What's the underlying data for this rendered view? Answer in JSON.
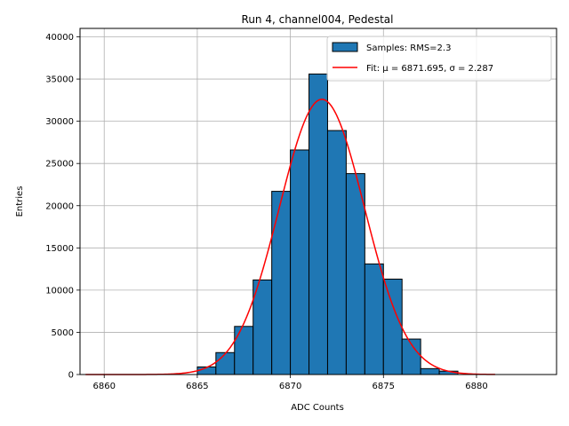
{
  "chart_data": {
    "type": "bar",
    "title": "Run 4, channel004, Pedestal",
    "xlabel": "ADC Counts",
    "ylabel": "Entries",
    "xlim": [
      6858.7,
      6884.3
    ],
    "ylim": [
      0,
      41000
    ],
    "xticks": [
      6860,
      6865,
      6870,
      6875,
      6880
    ],
    "yticks": [
      0,
      5000,
      10000,
      15000,
      20000,
      25000,
      30000,
      35000,
      40000
    ],
    "grid": true,
    "legend_position": "top-right",
    "histogram": {
      "name": "Samples: RMS=2.3",
      "color": "#1f77b4",
      "bin_edges": [
        6859,
        6860,
        6861,
        6862,
        6863,
        6864,
        6865,
        6866,
        6867,
        6868,
        6869,
        6870,
        6871,
        6872,
        6873,
        6874,
        6875,
        6876,
        6877,
        6878,
        6879,
        6880,
        6881,
        6882,
        6883
      ],
      "values": [
        0,
        0,
        0,
        0,
        0,
        0,
        900,
        2600,
        5700,
        11200,
        21700,
        26600,
        35600,
        28900,
        23800,
        13100,
        11300,
        4200,
        700,
        400,
        0,
        0,
        0,
        0
      ]
    },
    "fit": {
      "name": "Fit: μ = 6871.695, σ = 2.287",
      "color": "#ff0000",
      "mu": 6871.695,
      "sigma": 2.287,
      "amplitude": 32600,
      "x_range": [
        6859,
        6881
      ]
    }
  }
}
